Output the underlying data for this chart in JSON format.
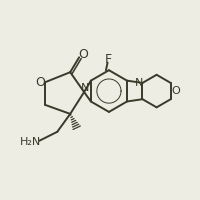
{
  "bg_color": "#eeede4",
  "line_color": "#3a3a2a",
  "line_width": 1.4,
  "font_size": 8,
  "fig_w": 2.0,
  "fig_h": 2.0,
  "dpi": 100,
  "xlim": [
    0,
    10
  ],
  "ylim": [
    0,
    10
  ]
}
